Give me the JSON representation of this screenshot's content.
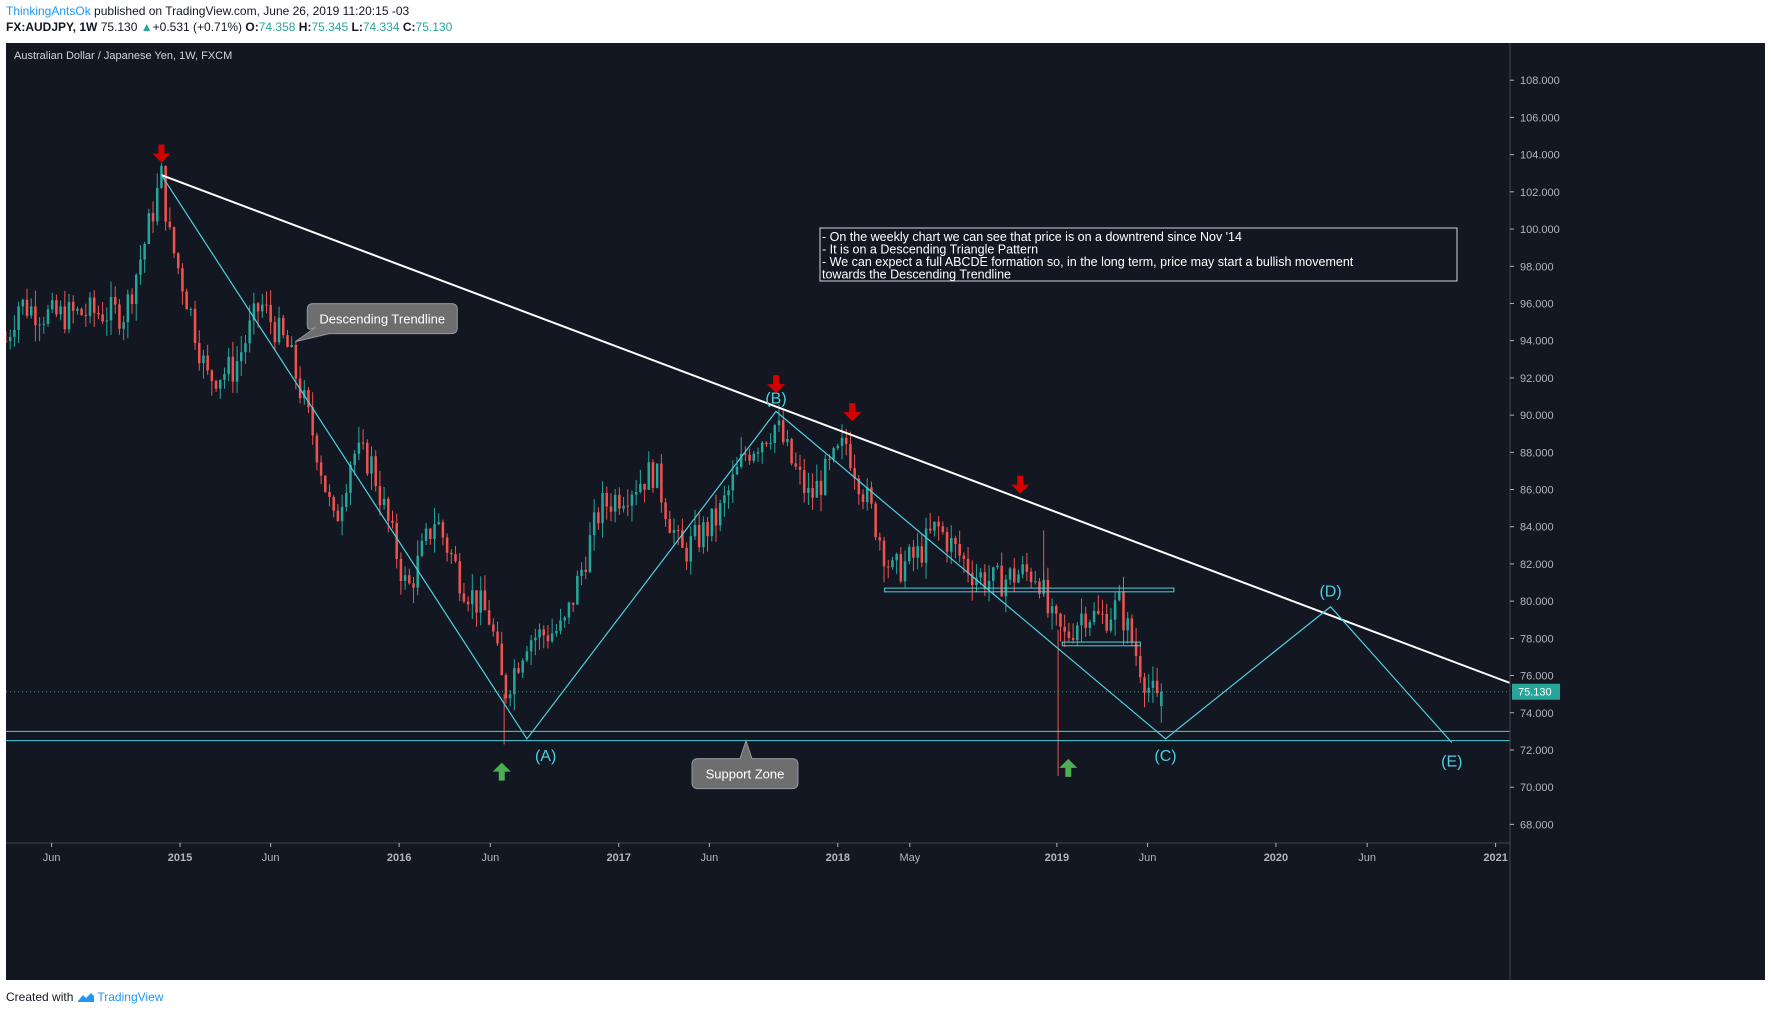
{
  "header": {
    "author": "ThinkingAntsOk",
    "published": "published on TradingView.com, June 26, 2019 11:20:15 -03",
    "symbol": "FX:AUDJPY, 1W",
    "last": "75.130",
    "change": "+0.531 (+0.71%)",
    "o_label": "O:",
    "o_value": "74.358",
    "h_label": "H:",
    "h_value": "75.345",
    "l_label": "L:",
    "l_value": "74.334",
    "c_label": "C:",
    "c_value": "75.130"
  },
  "footer": {
    "created_with": "Created with",
    "brand": "TradingView"
  },
  "colors": {
    "background": "#131722",
    "candle_up": "#26a69a",
    "candle_down": "#ef5350",
    "pattern_line": "#4dd0e1",
    "trendline": "#ffffff",
    "arrow_down": "#d50000",
    "arrow_up": "#4caf50",
    "axis_text": "#b2b5be",
    "price_badge": "#26a69a"
  },
  "chart_data": {
    "type": "candlestick",
    "title": "Australian Dollar / Japanese Yen, 1W, FXCM",
    "xlabel": "",
    "ylabel": "",
    "ylim": [
      67,
      110
    ],
    "xlim": [
      "2014-03-17",
      "2021-01-25"
    ],
    "grid": false,
    "current_price": 75.13,
    "current_price_label": "75.130",
    "y_ticks": [
      "108.000",
      "106.000",
      "104.000",
      "102.000",
      "100.000",
      "98.000",
      "96.000",
      "94.000",
      "92.000",
      "90.000",
      "88.000",
      "86.000",
      "84.000",
      "82.000",
      "80.000",
      "78.000",
      "76.000",
      "74.000",
      "72.000",
      "70.000",
      "68.000"
    ],
    "x_ticks": [
      {
        "label": "Jun",
        "date": "2014-06-01"
      },
      {
        "label": "2015",
        "date": "2015-01-01"
      },
      {
        "label": "Jun",
        "date": "2015-06-01"
      },
      {
        "label": "2016",
        "date": "2016-01-01"
      },
      {
        "label": "Jun",
        "date": "2016-06-01"
      },
      {
        "label": "2017",
        "date": "2017-01-01"
      },
      {
        "label": "Jun",
        "date": "2017-06-01"
      },
      {
        "label": "2018",
        "date": "2018-01-01"
      },
      {
        "label": "May",
        "date": "2018-05-01"
      },
      {
        "label": "2019",
        "date": "2019-01-01"
      },
      {
        "label": "Jun",
        "date": "2019-06-01"
      },
      {
        "label": "2020",
        "date": "2020-01-01"
      },
      {
        "label": "Jun",
        "date": "2020-06-01"
      },
      {
        "label": "2021",
        "date": "2021-01-01"
      }
    ],
    "price_path": [
      [
        "2014-03-17",
        94.0
      ],
      [
        "2014-04-07",
        96.0
      ],
      [
        "2014-06-01",
        95.3
      ],
      [
        "2014-08-01",
        95.5
      ],
      [
        "2014-10-01",
        95.5
      ],
      [
        "2014-11-01",
        99.0
      ],
      [
        "2014-12-01",
        102.8
      ],
      [
        "2014-12-15",
        99.5
      ],
      [
        "2015-01-15",
        96.0
      ],
      [
        "2015-02-15",
        92.0
      ],
      [
        "2015-04-01",
        92.5
      ],
      [
        "2015-05-15",
        96.0
      ],
      [
        "2015-07-01",
        93.5
      ],
      [
        "2015-08-15",
        88.5
      ],
      [
        "2015-09-15",
        84.0
      ],
      [
        "2015-10-15",
        88.0
      ],
      [
        "2015-11-15",
        87.5
      ],
      [
        "2016-01-15",
        80.5
      ],
      [
        "2016-03-01",
        84.5
      ],
      [
        "2016-04-15",
        81.0
      ],
      [
        "2016-06-01",
        79.0
      ],
      [
        "2016-06-24",
        75.0
      ],
      [
        "2016-08-01",
        78.0
      ],
      [
        "2016-10-01",
        78.5
      ],
      [
        "2016-12-01",
        85.0
      ],
      [
        "2017-01-15",
        86.0
      ],
      [
        "2017-03-01",
        87.0
      ],
      [
        "2017-04-15",
        82.5
      ],
      [
        "2017-06-15",
        84.5
      ],
      [
        "2017-08-01",
        88.0
      ],
      [
        "2017-09-20",
        89.5
      ],
      [
        "2017-10-15",
        87.5
      ],
      [
        "2017-11-15",
        85.5
      ],
      [
        "2018-01-15",
        88.5
      ],
      [
        "2018-03-01",
        84.5
      ],
      [
        "2018-04-01",
        81.5
      ],
      [
        "2018-05-15",
        82.5
      ],
      [
        "2018-06-15",
        84.0
      ],
      [
        "2018-08-15",
        81.5
      ],
      [
        "2018-09-20",
        81.0
      ],
      [
        "2018-11-01",
        81.5
      ],
      [
        "2018-12-01",
        81.5
      ],
      [
        "2018-12-20",
        79.0
      ],
      [
        "2019-01-15",
        78.0
      ],
      [
        "2019-02-15",
        79.5
      ],
      [
        "2019-03-15",
        79.0
      ],
      [
        "2019-04-15",
        79.8
      ],
      [
        "2019-05-15",
        77.0
      ],
      [
        "2019-06-01",
        75.5
      ],
      [
        "2019-06-17",
        74.5
      ],
      [
        "2019-06-24",
        75.13
      ]
    ],
    "spikes": [
      {
        "date": "2016-06-24",
        "low": 72.3
      },
      {
        "date": "2019-01-03",
        "low": 70.6
      },
      {
        "date": "2018-12-10",
        "high": 83.8
      }
    ],
    "annotations": {
      "trendline": {
        "start": [
          "2014-12-01",
          102.9
        ],
        "end": [
          "2021-01-25",
          75.6
        ]
      },
      "abcde": [
        {
          "label": "",
          "date": "2014-12-01",
          "price": 102.9
        },
        {
          "label": "(A)",
          "date": "2016-08-01",
          "price": 72.6
        },
        {
          "label": "(B)",
          "date": "2017-09-20",
          "price": 90.2
        },
        {
          "label": "(C)",
          "date": "2019-07-01",
          "price": 72.6
        },
        {
          "label": "(D)",
          "date": "2020-04-01",
          "price": 79.7
        },
        {
          "label": "(E)",
          "date": "2020-10-20",
          "price": 72.4
        }
      ],
      "support_lines": [
        73.0,
        72.5
      ],
      "zones": [
        {
          "from": "2018-03-20",
          "to": "2019-07-15",
          "top": 80.7,
          "bottom": 80.5
        },
        {
          "from": "2019-01-10",
          "to": "2019-05-20",
          "top": 77.8,
          "bottom": 77.6
        }
      ],
      "down_arrows": [
        {
          "date": "2014-12-01",
          "price": 103.9
        },
        {
          "date": "2017-09-20",
          "price": 91.5
        },
        {
          "date": "2018-01-25",
          "price": 90.0
        },
        {
          "date": "2018-11-01",
          "price": 86.1
        }
      ],
      "up_arrows": [
        {
          "date": "2016-06-20",
          "price": 71.0
        },
        {
          "date": "2019-01-20",
          "price": 71.2
        }
      ],
      "callouts": [
        {
          "text": "Descending Trendline",
          "anchor": [
            "2015-07-12",
            93.95
          ]
        },
        {
          "text": "Support Zone",
          "anchor": [
            "2017-08-01",
            72.5
          ]
        }
      ],
      "note_lines": [
        "- On the weekly chart we can see that price is on a downtrend since Nov '14",
        "- It is on a Descending Triangle Pattern",
        "- We can expect a full ABCDE formation so, in the long term, price may start a bullish movement",
        "towards the Descending Trendline"
      ]
    }
  }
}
